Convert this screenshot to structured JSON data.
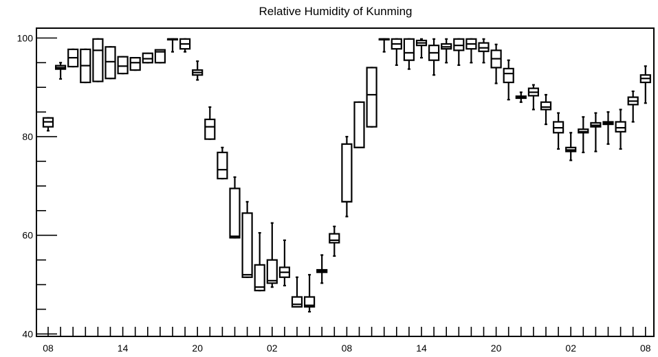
{
  "chart_data": {
    "type": "boxplot",
    "title": "Relative Humidity of Kunming",
    "xlabel": "",
    "ylabel": "",
    "ylim": [
      39.5,
      102
    ],
    "y_ticks": [
      40,
      60,
      80,
      100
    ],
    "x_tick_labels": [
      "08",
      "14",
      "20",
      "02",
      "08",
      "14",
      "20",
      "02",
      "08"
    ],
    "x_tick_label_positions": [
      0,
      6,
      12,
      18,
      24,
      30,
      36,
      42,
      48
    ],
    "grid": false,
    "boxes": [
      {
        "x": 0,
        "whisker_low": 81.2,
        "q1": 82.0,
        "median": 83.0,
        "q3": 83.8,
        "whisker_high": 83.8
      },
      {
        "x": 1,
        "whisker_low": 91.7,
        "q1": 93.7,
        "median": 94.0,
        "q3": 94.4,
        "whisker_high": 95.0
      },
      {
        "x": 2,
        "whisker_low": 94.2,
        "q1": 94.2,
        "median": 96.0,
        "q3": 97.7,
        "whisker_high": 97.7
      },
      {
        "x": 3,
        "whisker_low": 91.0,
        "q1": 91.0,
        "median": 94.4,
        "q3": 97.7,
        "whisker_high": 97.7
      },
      {
        "x": 4,
        "whisker_low": 91.2,
        "q1": 91.2,
        "median": 97.5,
        "q3": 99.8,
        "whisker_high": 99.8
      },
      {
        "x": 5,
        "whisker_low": 91.8,
        "q1": 91.8,
        "median": 95.2,
        "q3": 98.2,
        "whisker_high": 98.2
      },
      {
        "x": 6,
        "whisker_low": 92.8,
        "q1": 92.8,
        "median": 94.3,
        "q3": 96.2,
        "whisker_high": 96.2
      },
      {
        "x": 7,
        "whisker_low": 93.5,
        "q1": 93.5,
        "median": 95.0,
        "q3": 96.0,
        "whisker_high": 96.0
      },
      {
        "x": 8,
        "whisker_low": 95.0,
        "q1": 95.0,
        "median": 95.8,
        "q3": 96.9,
        "whisker_high": 96.9
      },
      {
        "x": 9,
        "whisker_low": 95.0,
        "q1": 95.0,
        "median": 97.2,
        "q3": 97.6,
        "whisker_high": 97.6
      },
      {
        "x": 10,
        "whisker_low": 97.2,
        "q1": 99.8,
        "median": 99.8,
        "q3": 99.8,
        "whisker_high": 99.8
      },
      {
        "x": 11,
        "whisker_low": 97.2,
        "q1": 97.8,
        "median": 98.8,
        "q3": 99.8,
        "whisker_high": 99.8
      },
      {
        "x": 12,
        "whisker_low": 91.5,
        "q1": 92.5,
        "median": 93.0,
        "q3": 93.5,
        "whisker_high": 95.3
      },
      {
        "x": 13,
        "whisker_low": 79.5,
        "q1": 79.5,
        "median": 82.0,
        "q3": 83.5,
        "whisker_high": 86.0
      },
      {
        "x": 14,
        "whisker_low": 71.5,
        "q1": 71.5,
        "median": 73.3,
        "q3": 76.8,
        "whisker_high": 77.8
      },
      {
        "x": 15,
        "whisker_low": 59.5,
        "q1": 59.5,
        "median": 59.8,
        "q3": 69.5,
        "whisker_high": 71.8
      },
      {
        "x": 16,
        "whisker_low": 51.5,
        "q1": 51.5,
        "median": 52.0,
        "q3": 64.5,
        "whisker_high": 66.8
      },
      {
        "x": 17,
        "whisker_low": 48.8,
        "q1": 48.8,
        "median": 49.5,
        "q3": 54.0,
        "whisker_high": 60.5
      },
      {
        "x": 18,
        "whisker_low": 49.5,
        "q1": 50.3,
        "median": 50.8,
        "q3": 55.0,
        "whisker_high": 62.5
      },
      {
        "x": 19,
        "whisker_low": 49.8,
        "q1": 51.5,
        "median": 52.5,
        "q3": 53.5,
        "whisker_high": 59.0
      },
      {
        "x": 20,
        "whisker_low": 45.5,
        "q1": 45.5,
        "median": 46.0,
        "q3": 47.5,
        "whisker_high": 51.5
      },
      {
        "x": 21,
        "whisker_low": 44.5,
        "q1": 45.5,
        "median": 45.8,
        "q3": 47.5,
        "whisker_high": 52.0
      },
      {
        "x": 22,
        "whisker_low": 50.3,
        "q1": 52.5,
        "median": 52.8,
        "q3": 53.0,
        "whisker_high": 56.0
      },
      {
        "x": 23,
        "whisker_low": 55.8,
        "q1": 58.5,
        "median": 59.0,
        "q3": 60.3,
        "whisker_high": 61.8
      },
      {
        "x": 24,
        "whisker_low": 63.8,
        "q1": 66.8,
        "median": 66.8,
        "q3": 78.5,
        "whisker_high": 80.0
      },
      {
        "x": 25,
        "whisker_low": 77.8,
        "q1": 77.8,
        "median": 77.8,
        "q3": 87.0,
        "whisker_high": 87.0
      },
      {
        "x": 26,
        "whisker_low": 82.0,
        "q1": 82.0,
        "median": 88.5,
        "q3": 94.0,
        "whisker_high": 94.0
      },
      {
        "x": 27,
        "whisker_low": 97.2,
        "q1": 99.8,
        "median": 99.8,
        "q3": 99.8,
        "whisker_high": 99.8
      },
      {
        "x": 28,
        "whisker_low": 94.5,
        "q1": 97.8,
        "median": 98.8,
        "q3": 99.8,
        "whisker_high": 99.8
      },
      {
        "x": 29,
        "whisker_low": 93.7,
        "q1": 95.5,
        "median": 97.0,
        "q3": 99.8,
        "whisker_high": 99.8
      },
      {
        "x": 30,
        "whisker_low": 96.0,
        "q1": 98.5,
        "median": 99.0,
        "q3": 99.5,
        "whisker_high": 99.8
      },
      {
        "x": 31,
        "whisker_low": 92.5,
        "q1": 95.5,
        "median": 97.0,
        "q3": 98.5,
        "whisker_high": 99.8
      },
      {
        "x": 32,
        "whisker_low": 95.0,
        "q1": 97.8,
        "median": 98.2,
        "q3": 98.8,
        "whisker_high": 99.8
      },
      {
        "x": 33,
        "whisker_low": 94.5,
        "q1": 97.5,
        "median": 98.5,
        "q3": 99.8,
        "whisker_high": 99.8
      },
      {
        "x": 34,
        "whisker_low": 95.0,
        "q1": 97.8,
        "median": 98.8,
        "q3": 99.8,
        "whisker_high": 99.8
      },
      {
        "x": 35,
        "whisker_low": 95.0,
        "q1": 97.3,
        "median": 98.0,
        "q3": 99.0,
        "whisker_high": 99.8
      },
      {
        "x": 36,
        "whisker_low": 90.8,
        "q1": 94.0,
        "median": 95.8,
        "q3": 97.5,
        "whisker_high": 98.7
      },
      {
        "x": 37,
        "whisker_low": 87.5,
        "q1": 91.0,
        "median": 92.8,
        "q3": 93.8,
        "whisker_high": 95.5
      },
      {
        "x": 38,
        "whisker_low": 87.0,
        "q1": 87.8,
        "median": 88.0,
        "q3": 88.2,
        "whisker_high": 89.0
      },
      {
        "x": 39,
        "whisker_low": 85.5,
        "q1": 88.3,
        "median": 89.0,
        "q3": 89.8,
        "whisker_high": 90.5
      },
      {
        "x": 40,
        "whisker_low": 82.5,
        "q1": 85.5,
        "median": 86.0,
        "q3": 87.0,
        "whisker_high": 88.5
      },
      {
        "x": 41,
        "whisker_low": 77.5,
        "q1": 80.8,
        "median": 81.8,
        "q3": 83.0,
        "whisker_high": 84.8
      },
      {
        "x": 42,
        "whisker_low": 75.2,
        "q1": 77.0,
        "median": 77.3,
        "q3": 77.8,
        "whisker_high": 80.8
      },
      {
        "x": 43,
        "whisker_low": 76.8,
        "q1": 80.8,
        "median": 81.0,
        "q3": 81.5,
        "whisker_high": 84.0
      },
      {
        "x": 44,
        "whisker_low": 77.0,
        "q1": 82.0,
        "median": 82.3,
        "q3": 82.8,
        "whisker_high": 84.8
      },
      {
        "x": 45,
        "whisker_low": 78.5,
        "q1": 82.5,
        "median": 82.8,
        "q3": 83.0,
        "whisker_high": 85.0
      },
      {
        "x": 46,
        "whisker_low": 77.5,
        "q1": 81.0,
        "median": 81.8,
        "q3": 83.0,
        "whisker_high": 85.5
      },
      {
        "x": 47,
        "whisker_low": 83.0,
        "q1": 86.5,
        "median": 87.2,
        "q3": 88.0,
        "whisker_high": 89.2
      },
      {
        "x": 48,
        "whisker_low": 86.8,
        "q1": 91.0,
        "median": 91.8,
        "q3": 92.5,
        "whisker_high": 94.3
      }
    ]
  }
}
